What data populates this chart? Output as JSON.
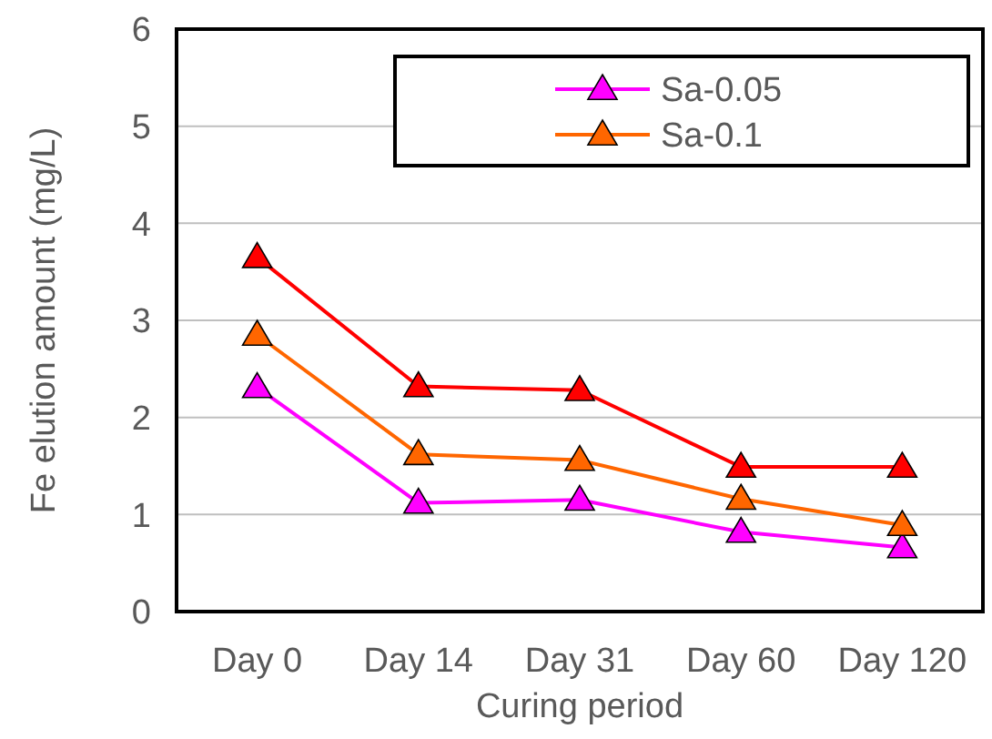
{
  "chart_data": {
    "type": "line",
    "xlabel": "Curing period",
    "ylabel": "Fe elution amount (mg/L)",
    "categories": [
      "Day 0",
      "Day 14",
      "Day 31",
      "Day 60",
      "Day 120"
    ],
    "series": [
      {
        "name": "Sa-0.05",
        "color": "#ff00ff",
        "values": [
          2.31,
          1.12,
          1.15,
          0.82,
          0.66
        ]
      },
      {
        "name": "Sa-0.1",
        "color": "#ff6600",
        "values": [
          2.85,
          1.62,
          1.56,
          1.16,
          0.89
        ]
      },
      {
        "color": "#ff0000",
        "values": [
          3.65,
          2.32,
          2.28,
          1.49,
          1.49
        ]
      }
    ],
    "ylim": [
      0,
      6
    ],
    "yticks": [
      0,
      1,
      2,
      3,
      4,
      5,
      6
    ],
    "grid": "y",
    "legend": "top right",
    "marker": "triangle",
    "line_style": "solid"
  }
}
